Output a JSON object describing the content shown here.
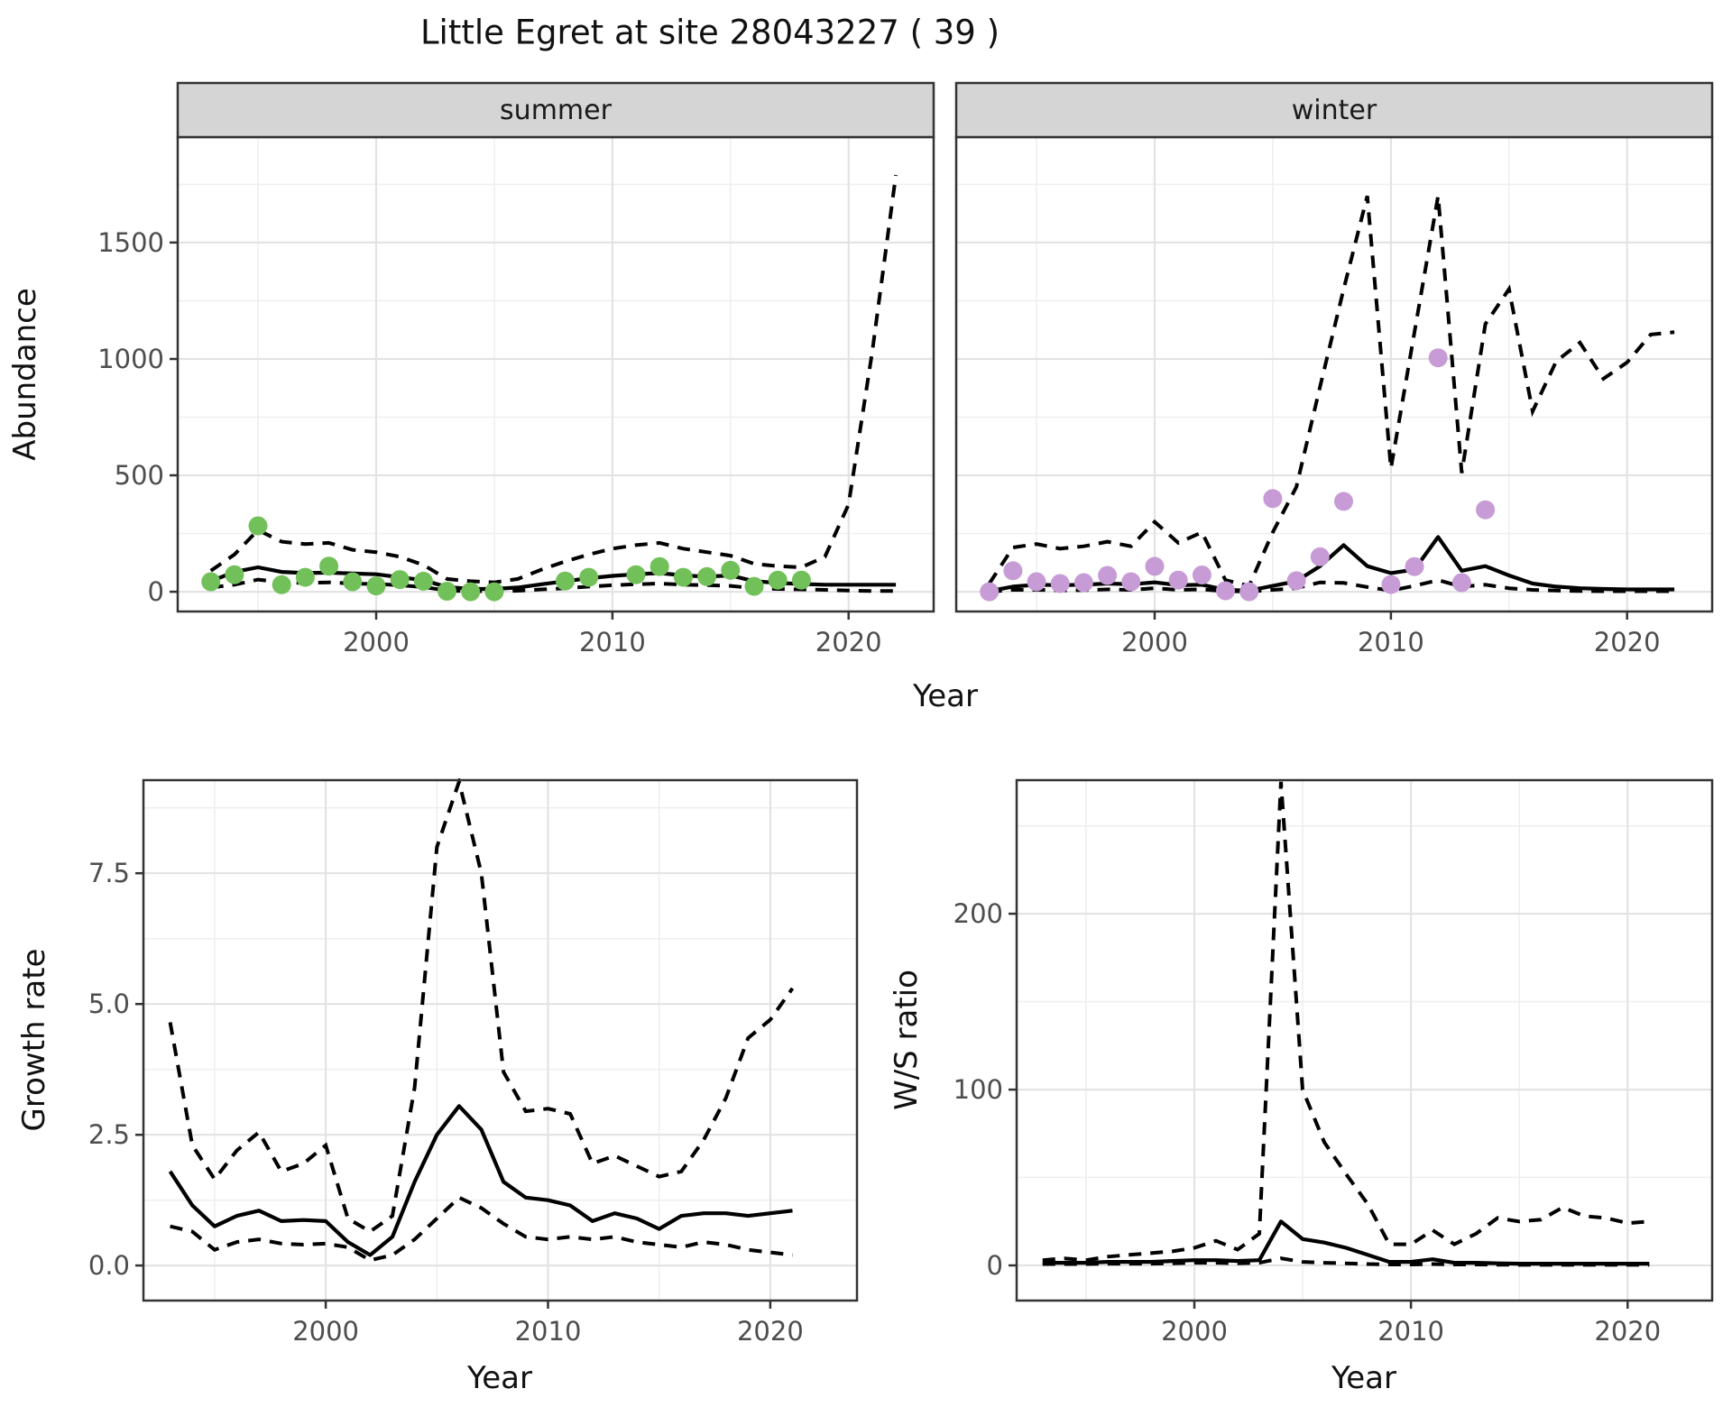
{
  "title": "Little Egret at site 28043227 ( 39 )",
  "colors": {
    "summer_point": "#72C05A",
    "winter_point": "#C79CD6",
    "line": "#000000",
    "grid_major": "#E3E3E3",
    "grid_minor": "#EFEFEF",
    "panel_border": "#333333",
    "strip_bg": "#D5D5D5",
    "strip_text": "#1A1A1A",
    "tick_text": "#4D4D4D",
    "tick_mark": "#333333"
  },
  "chart_data": [
    {
      "id": "abundance-summer",
      "type": "line",
      "facet": "summer",
      "xlabel": "Year",
      "ylabel": "Abundance",
      "legend": "none",
      "grid": "on",
      "xlim": [
        1991.6,
        2023.6
      ],
      "ylim": [
        -85,
        1953
      ],
      "xticks": {
        "major": [
          2000,
          2010,
          2020
        ],
        "minor": [
          1995,
          2005,
          2015
        ],
        "labels": [
          "2000",
          "2010",
          "2020"
        ]
      },
      "yticks": {
        "major": [
          0,
          500,
          1000,
          1500
        ],
        "minor": [
          250,
          750,
          1250,
          1750
        ],
        "labels": [
          "0",
          "500",
          "1000",
          "1500"
        ]
      },
      "years": [
        1993,
        1994,
        1995,
        1996,
        1997,
        1998,
        1999,
        2000,
        2001,
        2002,
        2003,
        2004,
        2005,
        2006,
        2007,
        2008,
        2009,
        2010,
        2011,
        2012,
        2013,
        2014,
        2015,
        2016,
        2017,
        2018,
        2019,
        2020,
        2021,
        2022
      ],
      "fit": [
        45,
        85,
        105,
        85,
        80,
        82,
        78,
        75,
        62,
        50,
        20,
        12,
        12,
        18,
        32,
        45,
        58,
        68,
        75,
        80,
        70,
        65,
        70,
        45,
        38,
        33,
        30,
        30,
        30,
        30
      ],
      "ci_upper": [
        90,
        160,
        265,
        215,
        205,
        210,
        180,
        170,
        150,
        115,
        55,
        45,
        40,
        55,
        95,
        130,
        160,
        185,
        200,
        210,
        185,
        170,
        155,
        120,
        110,
        105,
        150,
        375,
        1030,
        1790
      ],
      "ci_lower": [
        18,
        30,
        52,
        40,
        38,
        40,
        35,
        33,
        28,
        20,
        5,
        2,
        2,
        4,
        10,
        15,
        22,
        28,
        32,
        35,
        30,
        28,
        25,
        15,
        12,
        10,
        8,
        5,
        3,
        3
      ],
      "observed": [
        43,
        73,
        283,
        30,
        62,
        110,
        43,
        25,
        52,
        45,
        2,
        0,
        0,
        null,
        null,
        46,
        62,
        null,
        73,
        108,
        62,
        65,
        92,
        23,
        50,
        50,
        null,
        null,
        null,
        null
      ],
      "point_color": "#72C05A"
    },
    {
      "id": "abundance-winter",
      "type": "line",
      "facet": "winter",
      "xlabel": "Year",
      "ylabel": "Abundance",
      "legend": "none",
      "grid": "on",
      "xlim": [
        1991.6,
        2023.6
      ],
      "ylim": [
        -85,
        1953
      ],
      "xticks": {
        "major": [
          2000,
          2010,
          2020
        ],
        "minor": [
          1995,
          2005,
          2015
        ],
        "labels": [
          "2000",
          "2010",
          "2020"
        ]
      },
      "yticks": {
        "major": [
          0,
          500,
          1000,
          1500
        ],
        "minor": [
          250,
          750,
          1250,
          1750
        ],
        "labels": [
          "0",
          "500",
          "1000",
          "1500"
        ]
      },
      "years": [
        1993,
        1994,
        1995,
        1996,
        1997,
        1998,
        1999,
        2000,
        2001,
        2002,
        2003,
        2004,
        2005,
        2006,
        2007,
        2008,
        2009,
        2010,
        2011,
        2012,
        2013,
        2014,
        2015,
        2016,
        2017,
        2018,
        2019,
        2020,
        2021,
        2022
      ],
      "fit": [
        3,
        22,
        30,
        28,
        30,
        35,
        32,
        40,
        28,
        30,
        8,
        5,
        25,
        45,
        110,
        200,
        110,
        80,
        95,
        235,
        90,
        110,
        70,
        35,
        22,
        15,
        12,
        10,
        10,
        10
      ],
      "ci_upper": [
        35,
        190,
        205,
        185,
        195,
        215,
        195,
        300,
        210,
        255,
        50,
        25,
        255,
        450,
        880,
        1300,
        1700,
        530,
        1115,
        1700,
        510,
        1150,
        1300,
        775,
        990,
        1070,
        915,
        985,
        1105,
        1115
      ],
      "ci_lower": [
        0,
        8,
        8,
        6,
        7,
        10,
        8,
        15,
        8,
        10,
        2,
        1,
        8,
        15,
        40,
        38,
        20,
        5,
        25,
        50,
        22,
        30,
        15,
        8,
        5,
        3,
        2,
        2,
        2,
        2
      ],
      "observed": [
        0,
        90,
        43,
        35,
        39,
        70,
        43,
        109,
        50,
        72,
        4,
        0,
        400,
        47,
        150,
        388,
        null,
        31,
        108,
        1005,
        39,
        352,
        null,
        null,
        null,
        null,
        null,
        null,
        null,
        null
      ],
      "point_color": "#C79CD6"
    },
    {
      "id": "growth-rate",
      "type": "line",
      "facet": null,
      "xlabel": "Year",
      "ylabel": "Growth rate",
      "legend": "none",
      "grid": "on",
      "xlim": [
        1991.8,
        2023.9
      ],
      "ylim": [
        -0.67,
        9.28
      ],
      "xticks": {
        "major": [
          2000,
          2010,
          2020
        ],
        "minor": [
          1995,
          2005,
          2015
        ],
        "labels": [
          "2000",
          "2010",
          "2020"
        ]
      },
      "yticks": {
        "major": [
          0,
          2.5,
          5,
          7.5
        ],
        "minor": [
          1.25,
          3.75,
          6.25,
          8.75
        ],
        "labels": [
          "0.0",
          "2.5",
          "5.0",
          "7.5"
        ]
      },
      "years": [
        1993,
        1994,
        1995,
        1996,
        1997,
        1998,
        1999,
        2000,
        2001,
        2002,
        2003,
        2004,
        2005,
        2006,
        2007,
        2008,
        2009,
        2010,
        2011,
        2012,
        2013,
        2014,
        2015,
        2016,
        2017,
        2018,
        2019,
        2020,
        2021
      ],
      "fit": [
        1.8,
        1.15,
        0.75,
        0.95,
        1.05,
        0.85,
        0.87,
        0.85,
        0.45,
        0.2,
        0.55,
        1.6,
        2.5,
        3.05,
        2.6,
        1.6,
        1.3,
        1.25,
        1.15,
        0.85,
        1.0,
        0.9,
        0.7,
        0.95,
        1.0,
        1.0,
        0.95,
        1.0,
        1.05
      ],
      "ci_upper": [
        4.65,
        2.3,
        1.65,
        2.2,
        2.55,
        1.8,
        1.95,
        2.3,
        0.9,
        0.65,
        0.95,
        3.4,
        8.0,
        9.25,
        7.5,
        3.7,
        2.95,
        3.0,
        2.9,
        1.95,
        2.1,
        1.9,
        1.7,
        1.8,
        2.4,
        3.2,
        4.35,
        4.7,
        5.3
      ],
      "ci_lower": [
        0.75,
        0.65,
        0.3,
        0.45,
        0.5,
        0.42,
        0.4,
        0.42,
        0.35,
        0.1,
        0.2,
        0.5,
        0.9,
        1.3,
        1.1,
        0.8,
        0.55,
        0.5,
        0.55,
        0.5,
        0.55,
        0.45,
        0.4,
        0.35,
        0.45,
        0.4,
        0.3,
        0.25,
        0.2
      ],
      "observed": null,
      "point_color": null
    },
    {
      "id": "ws-ratio",
      "type": "line",
      "facet": null,
      "xlabel": "Year",
      "ylabel": "W/S ratio",
      "legend": "none",
      "grid": "on",
      "xlim": [
        1991.8,
        2023.9
      ],
      "ylim": [
        -20,
        276
      ],
      "xticks": {
        "major": [
          2000,
          2010,
          2020
        ],
        "minor": [
          1995,
          2005,
          2015
        ],
        "labels": [
          "2000",
          "2010",
          "2020"
        ]
      },
      "yticks": {
        "major": [
          0,
          100,
          200
        ],
        "minor": [
          50,
          150,
          250
        ],
        "labels": [
          "0",
          "100",
          "200"
        ]
      },
      "years": [
        1993,
        1994,
        1995,
        1996,
        1997,
        1998,
        1999,
        2000,
        2001,
        2002,
        2003,
        2004,
        2005,
        2006,
        2007,
        2008,
        2009,
        2010,
        2011,
        2012,
        2013,
        2014,
        2015,
        2016,
        2017,
        2018,
        2019,
        2020,
        2021
      ],
      "fit": [
        1.5,
        1.5,
        1.5,
        2,
        2,
        2,
        2.5,
        3,
        3,
        2.5,
        3,
        25,
        15,
        13,
        10,
        6,
        2,
        2,
        3.5,
        1.5,
        1.5,
        1.2,
        1,
        1,
        1,
        1,
        1,
        1,
        1
      ],
      "ci_upper": [
        3,
        4,
        3,
        5,
        6,
        7,
        8,
        10,
        14,
        9,
        18,
        275,
        100,
        70,
        52,
        35,
        12,
        12,
        20,
        12,
        18,
        27,
        25,
        26,
        33,
        28,
        27,
        24,
        25
      ],
      "ci_lower": [
        0.8,
        0.8,
        0.8,
        1,
        1,
        1,
        1.2,
        1.5,
        1.5,
        1.2,
        1.5,
        4,
        2,
        1.5,
        1.2,
        0.8,
        0.5,
        0.5,
        0.8,
        0.5,
        0.5,
        0.4,
        0.3,
        0.3,
        0.3,
        0.3,
        0.3,
        0.3,
        0.3
      ],
      "observed": null,
      "point_color": null
    }
  ]
}
